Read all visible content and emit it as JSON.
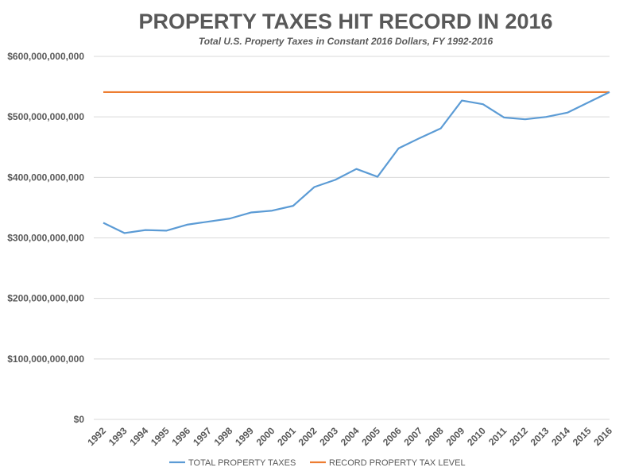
{
  "chart_data": {
    "type": "line",
    "title": "PROPERTY TAXES HIT RECORD IN 2016",
    "subtitle": "Total U.S. Property Taxes in Constant 2016 Dollars, FY 1992-2016",
    "xlabel": "",
    "ylabel": "",
    "x": [
      "1992",
      "1993",
      "1994",
      "1995",
      "1996",
      "1997",
      "1998",
      "1999",
      "2000",
      "2001",
      "2002",
      "2003",
      "2004",
      "2005",
      "2006",
      "2007",
      "2008",
      "2009",
      "2010",
      "2011",
      "2012",
      "2013",
      "2014",
      "2015",
      "2016"
    ],
    "ylim": [
      0,
      600000000000
    ],
    "yticks": [
      0,
      100000000000,
      200000000000,
      300000000000,
      400000000000,
      500000000000,
      600000000000
    ],
    "ytick_labels": [
      "$0",
      "$100,000,000,000",
      "$200,000,000,000",
      "$300,000,000,000",
      "$400,000,000,000",
      "$500,000,000,000",
      "$600,000,000,000"
    ],
    "grid": true,
    "legend_position": "bottom",
    "series": [
      {
        "name": "TOTAL PROPERTY TAXES",
        "color": "#5b9bd5",
        "values": [
          325000000000,
          308000000000,
          313000000000,
          312000000000,
          322000000000,
          327000000000,
          332000000000,
          342000000000,
          345000000000,
          353000000000,
          384000000000,
          396000000000,
          414000000000,
          401000000000,
          448000000000,
          465000000000,
          481000000000,
          527000000000,
          521000000000,
          499000000000,
          496000000000,
          500000000000,
          507000000000,
          524000000000,
          541000000000
        ]
      },
      {
        "name": "RECORD PROPERTY TAX LEVEL",
        "color": "#ed7d31",
        "values": [
          541000000000,
          541000000000,
          541000000000,
          541000000000,
          541000000000,
          541000000000,
          541000000000,
          541000000000,
          541000000000,
          541000000000,
          541000000000,
          541000000000,
          541000000000,
          541000000000,
          541000000000,
          541000000000,
          541000000000,
          541000000000,
          541000000000,
          541000000000,
          541000000000,
          541000000000,
          541000000000,
          541000000000,
          541000000000
        ]
      }
    ]
  }
}
